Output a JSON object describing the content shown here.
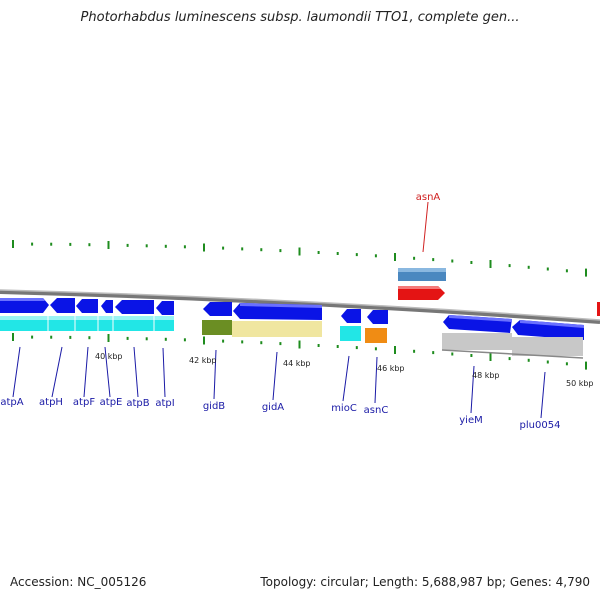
{
  "title": "Photorhabdus luminescens subsp. laumondii TTO1, complete gen...",
  "footer": {
    "accession": "Accession: NC_005126",
    "summary": "Topology: circular; Length: 5,688,987 bp; Genes: 4,790"
  },
  "scale_labels": [
    "40 kbp",
    "42 kbp",
    "44 kbp",
    "46 kbp",
    "48 kbp",
    "50 kbp"
  ],
  "genes": [
    {
      "name": "asnA",
      "color": "#d02020"
    },
    {
      "name": "atpA",
      "color": "#1a1aa6"
    },
    {
      "name": "atpH",
      "color": "#1a1aa6"
    },
    {
      "name": "atpF",
      "color": "#1a1aa6"
    },
    {
      "name": "atpE",
      "color": "#1a1aa6"
    },
    {
      "name": "atpB",
      "color": "#1a1aa6"
    },
    {
      "name": "atpI",
      "color": "#1a1aa6"
    },
    {
      "name": "gidB",
      "color": "#1a1aa6"
    },
    {
      "name": "gidA",
      "color": "#1a1aa6"
    },
    {
      "name": "mioC",
      "color": "#1a1aa6"
    },
    {
      "name": "asnC",
      "color": "#1a1aa6"
    },
    {
      "name": "yieM",
      "color": "#1a1aa6"
    },
    {
      "name": "plu0054",
      "color": "#1a1aa6"
    }
  ],
  "colors": {
    "cds_forward": "#0a14e6",
    "cds_reverse": "#0a14e6",
    "rna": "#d81414",
    "tick": "#1e8c1e",
    "backbone": "#888888",
    "cyan": "#22e6e6",
    "olive": "#6b8e23",
    "khaki": "#f0e6a0",
    "orange": "#f08c14",
    "gray": "#c8c8c8",
    "steelblue": "#4a88c0"
  }
}
